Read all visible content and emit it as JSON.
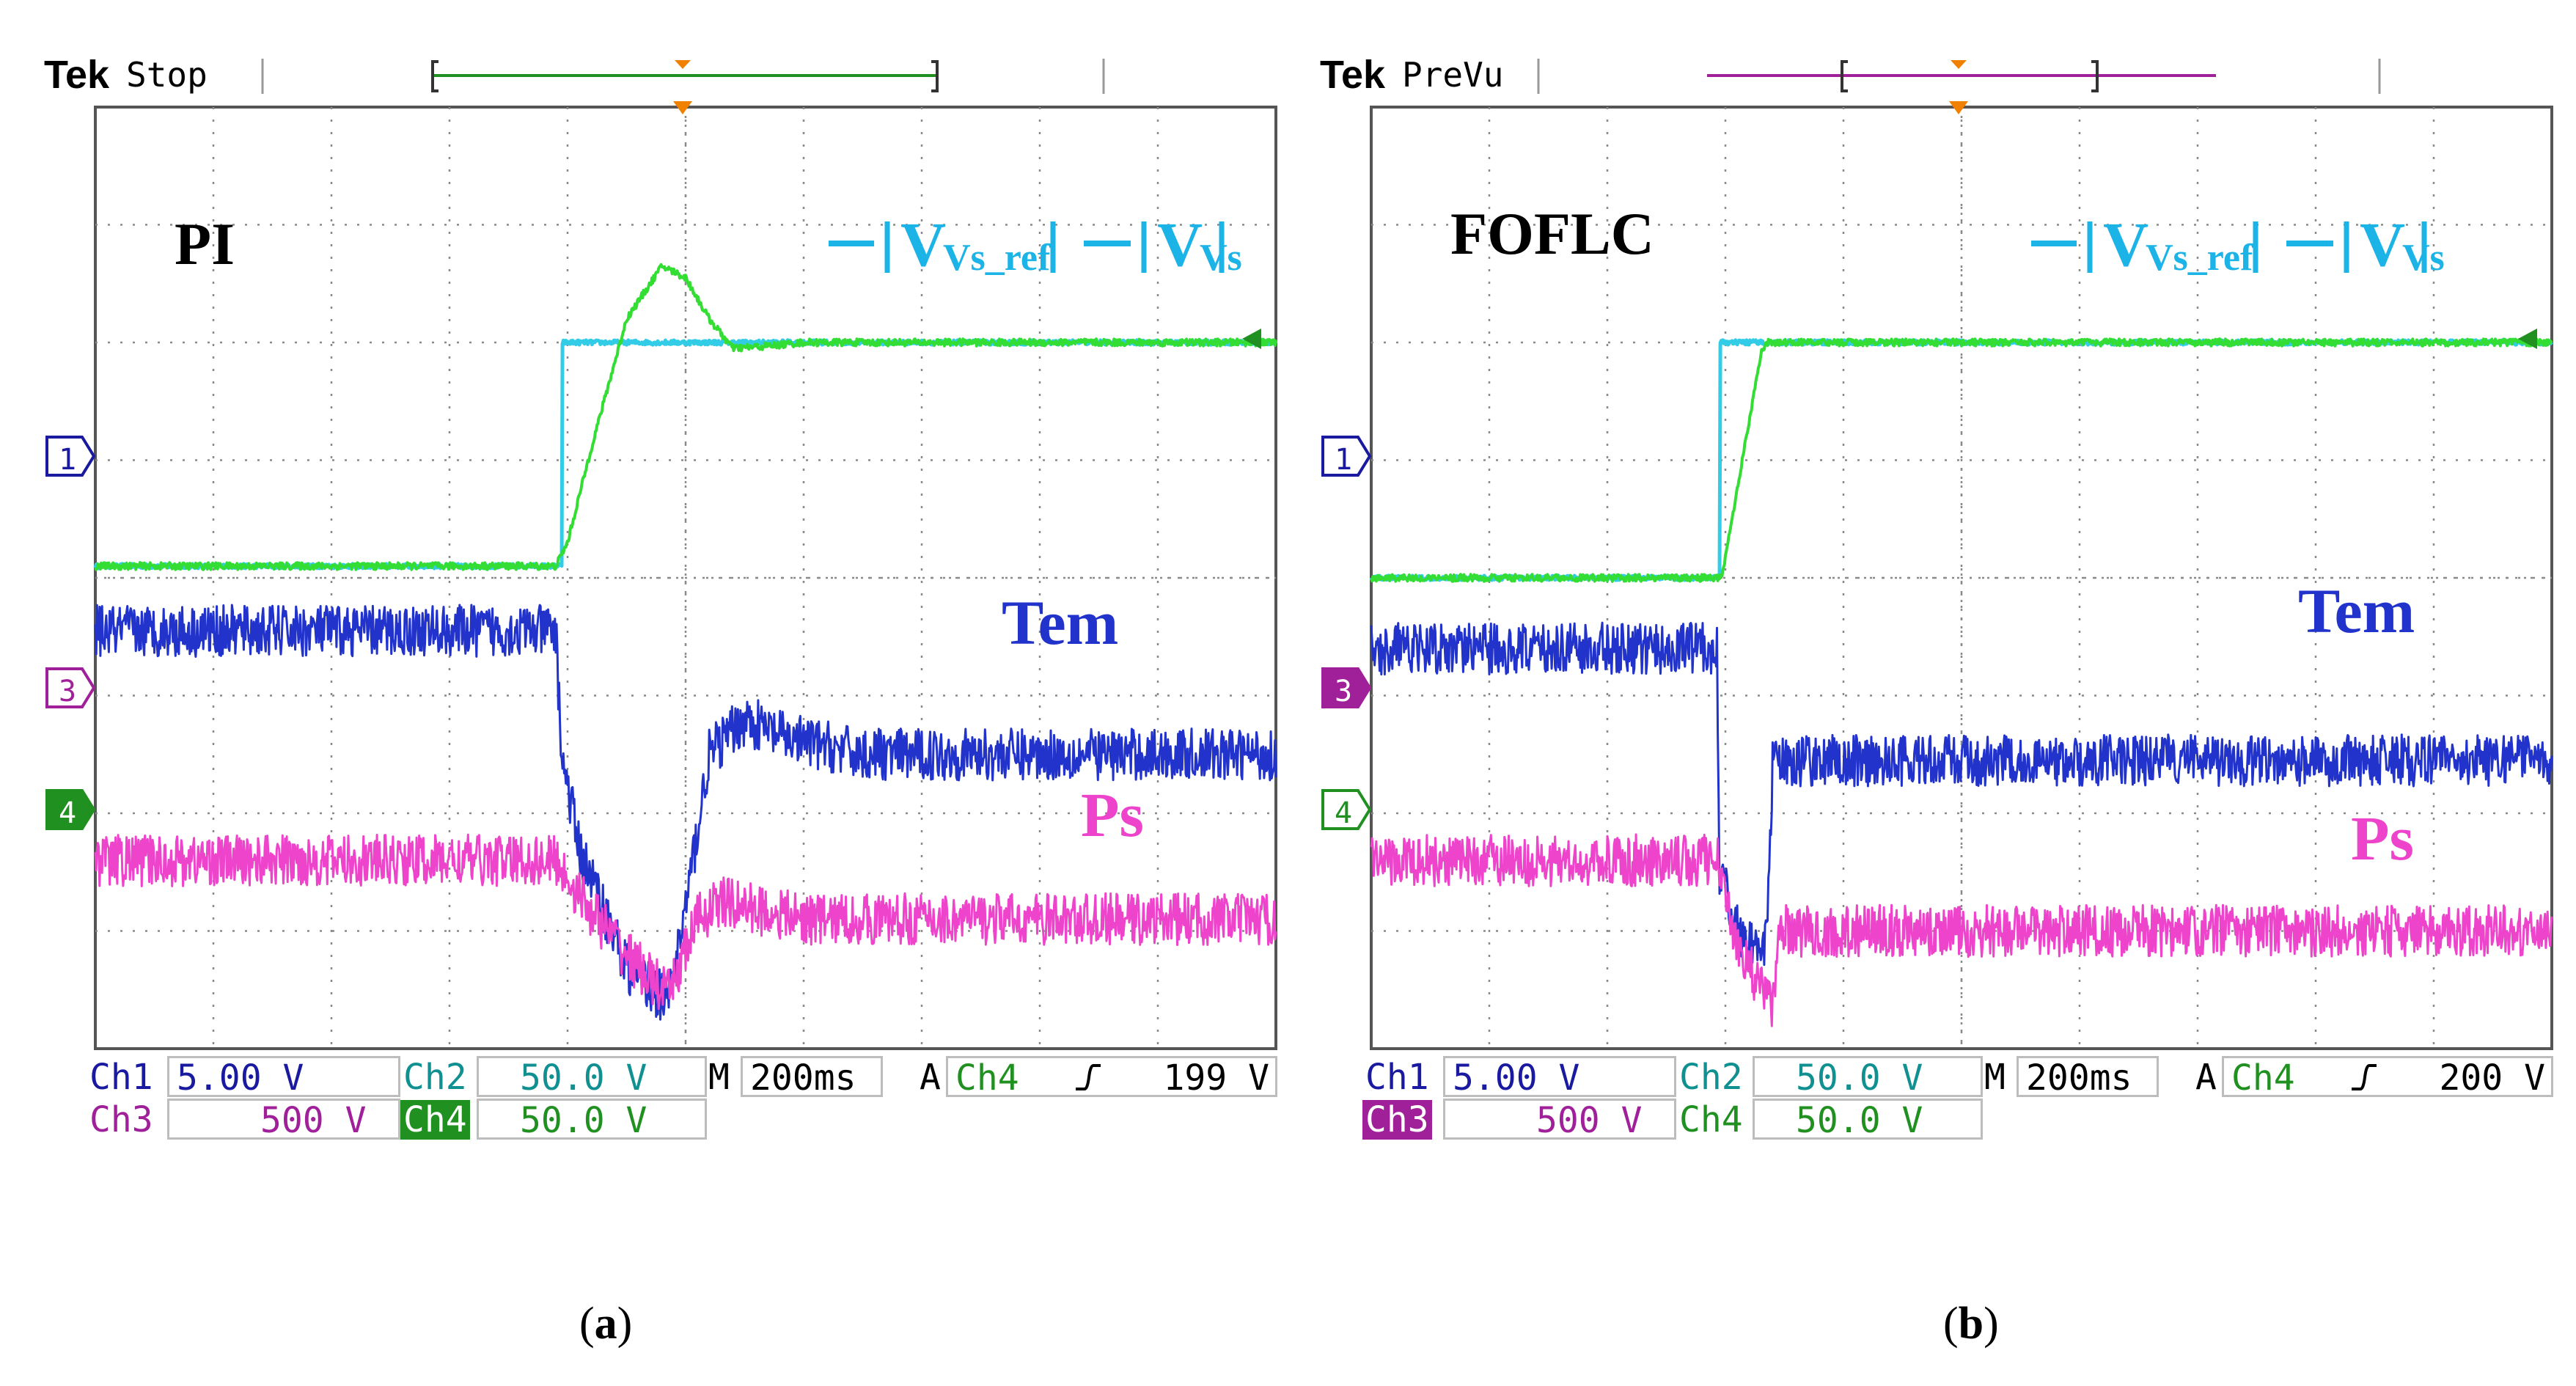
{
  "panels": [
    {
      "id": "a",
      "caption_letter": "a",
      "scope": {
        "brand": "Tek",
        "mode": "Stop",
        "controller_label": "PI",
        "trace_labels": {
          "ref": "Vs_ref",
          "meas": "Vs",
          "torque": "Tem",
          "power": "Ps"
        },
        "channel_markers": [
          "1",
          "3",
          "4"
        ],
        "ch1": {
          "label": "Ch1",
          "scale": "5.00 V"
        },
        "ch2": {
          "label": "Ch2",
          "scale": "50.0 V"
        },
        "ch3": {
          "label": "Ch3",
          "scale": "500 V"
        },
        "ch4": {
          "label": "Ch4",
          "scale": "50.0 V"
        },
        "timebase_prefix": "M",
        "timebase": "200ms",
        "trigger_prefix": "A",
        "trigger_channel": "Ch4",
        "trigger_slope": "rising",
        "trigger_level": "199 V"
      }
    },
    {
      "id": "b",
      "caption_letter": "b",
      "scope": {
        "brand": "Tek",
        "mode": "PreVu",
        "controller_label": "FOFLC",
        "trace_labels": {
          "ref": "Vs_ref",
          "meas": "Vs",
          "torque": "Tem",
          "power": "Ps"
        },
        "channel_markers": [
          "1",
          "3",
          "4"
        ],
        "ch1": {
          "label": "Ch1",
          "scale": "5.00 V"
        },
        "ch2": {
          "label": "Ch2",
          "scale": "50.0 V"
        },
        "ch3": {
          "label": "Ch3",
          "scale": "500 V"
        },
        "ch4": {
          "label": "Ch4",
          "scale": "50.0 V"
        },
        "timebase_prefix": "M",
        "timebase": "200ms",
        "trigger_prefix": "A",
        "trigger_channel": "Ch4",
        "trigger_slope": "rising",
        "trigger_level": "200 V"
      }
    }
  ],
  "colors": {
    "ref": "#33cce6",
    "meas": "#33dd33",
    "torque": "#2233cc",
    "power": "#ee44cc",
    "ch1": "#1a1aa0",
    "ch2": "#109090",
    "ch3": "#a0209a",
    "ch4": "#209020",
    "grid": "#8a8a8a",
    "frame": "#555555",
    "trigger": "#f08000"
  },
  "chart_data": [
    {
      "type": "line",
      "title": "PI",
      "x_unit": "div",
      "xlim": [
        0,
        10
      ],
      "ylim": [
        -4,
        4
      ],
      "timebase": "200ms/div",
      "series": [
        {
          "name": "Vs_ref",
          "x": [
            0,
            3.95,
            3.95,
            10
          ],
          "y": [
            0.1,
            0.1,
            2.0,
            2.0
          ]
        },
        {
          "name": "Vs",
          "x": [
            0,
            3.9,
            4.0,
            4.2,
            4.5,
            4.8,
            5.0,
            5.2,
            5.4,
            5.7,
            6.0,
            10
          ],
          "y": [
            0.1,
            0.1,
            0.3,
            1.1,
            2.2,
            2.65,
            2.55,
            2.2,
            1.95,
            1.97,
            2.0,
            2.0
          ]
        },
        {
          "name": "Tem",
          "x": [
            0,
            3.9,
            3.95,
            4.1,
            4.5,
            4.85,
            5.0,
            5.2,
            5.5,
            5.8,
            6.5,
            10
          ],
          "y": [
            -0.45,
            -0.45,
            -1.5,
            -2.3,
            -3.3,
            -3.6,
            -2.8,
            -1.5,
            -1.2,
            -1.35,
            -1.5,
            -1.5
          ]
        },
        {
          "name": "Ps",
          "x": [
            0,
            3.9,
            4.1,
            4.5,
            4.85,
            5.1,
            5.3,
            6.0,
            10
          ],
          "y": [
            -2.4,
            -2.4,
            -2.7,
            -3.2,
            -3.55,
            -2.9,
            -2.75,
            -2.9,
            -2.9
          ]
        }
      ],
      "annotations": [
        "PI",
        "Vs_ref",
        "Vs",
        "Tem",
        "Ps"
      ]
    },
    {
      "type": "line",
      "title": "FOFLC",
      "x_unit": "div",
      "xlim": [
        0,
        10
      ],
      "ylim": [
        -4,
        4
      ],
      "timebase": "200ms/div",
      "series": [
        {
          "name": "Vs_ref",
          "x": [
            0,
            2.95,
            2.95,
            10
          ],
          "y": [
            0.0,
            0.0,
            2.0,
            2.0
          ]
        },
        {
          "name": "Vs",
          "x": [
            0,
            2.97,
            3.3,
            3.35,
            10
          ],
          "y": [
            0.0,
            0.0,
            1.9,
            2.0,
            2.0
          ]
        },
        {
          "name": "Tem",
          "x": [
            0,
            2.93,
            2.95,
            3.1,
            3.35,
            3.4,
            10
          ],
          "y": [
            -0.6,
            -0.6,
            -2.5,
            -3.0,
            -3.1,
            -1.55,
            -1.55
          ]
        },
        {
          "name": "Ps",
          "x": [
            0,
            2.93,
            3.0,
            3.2,
            3.4,
            3.45,
            10
          ],
          "y": [
            -2.4,
            -2.4,
            -2.8,
            -3.3,
            -3.6,
            -3.0,
            -3.0
          ]
        }
      ],
      "annotations": [
        "FOFLC",
        "Vs_ref",
        "Vs",
        "Tem",
        "Ps"
      ]
    }
  ]
}
